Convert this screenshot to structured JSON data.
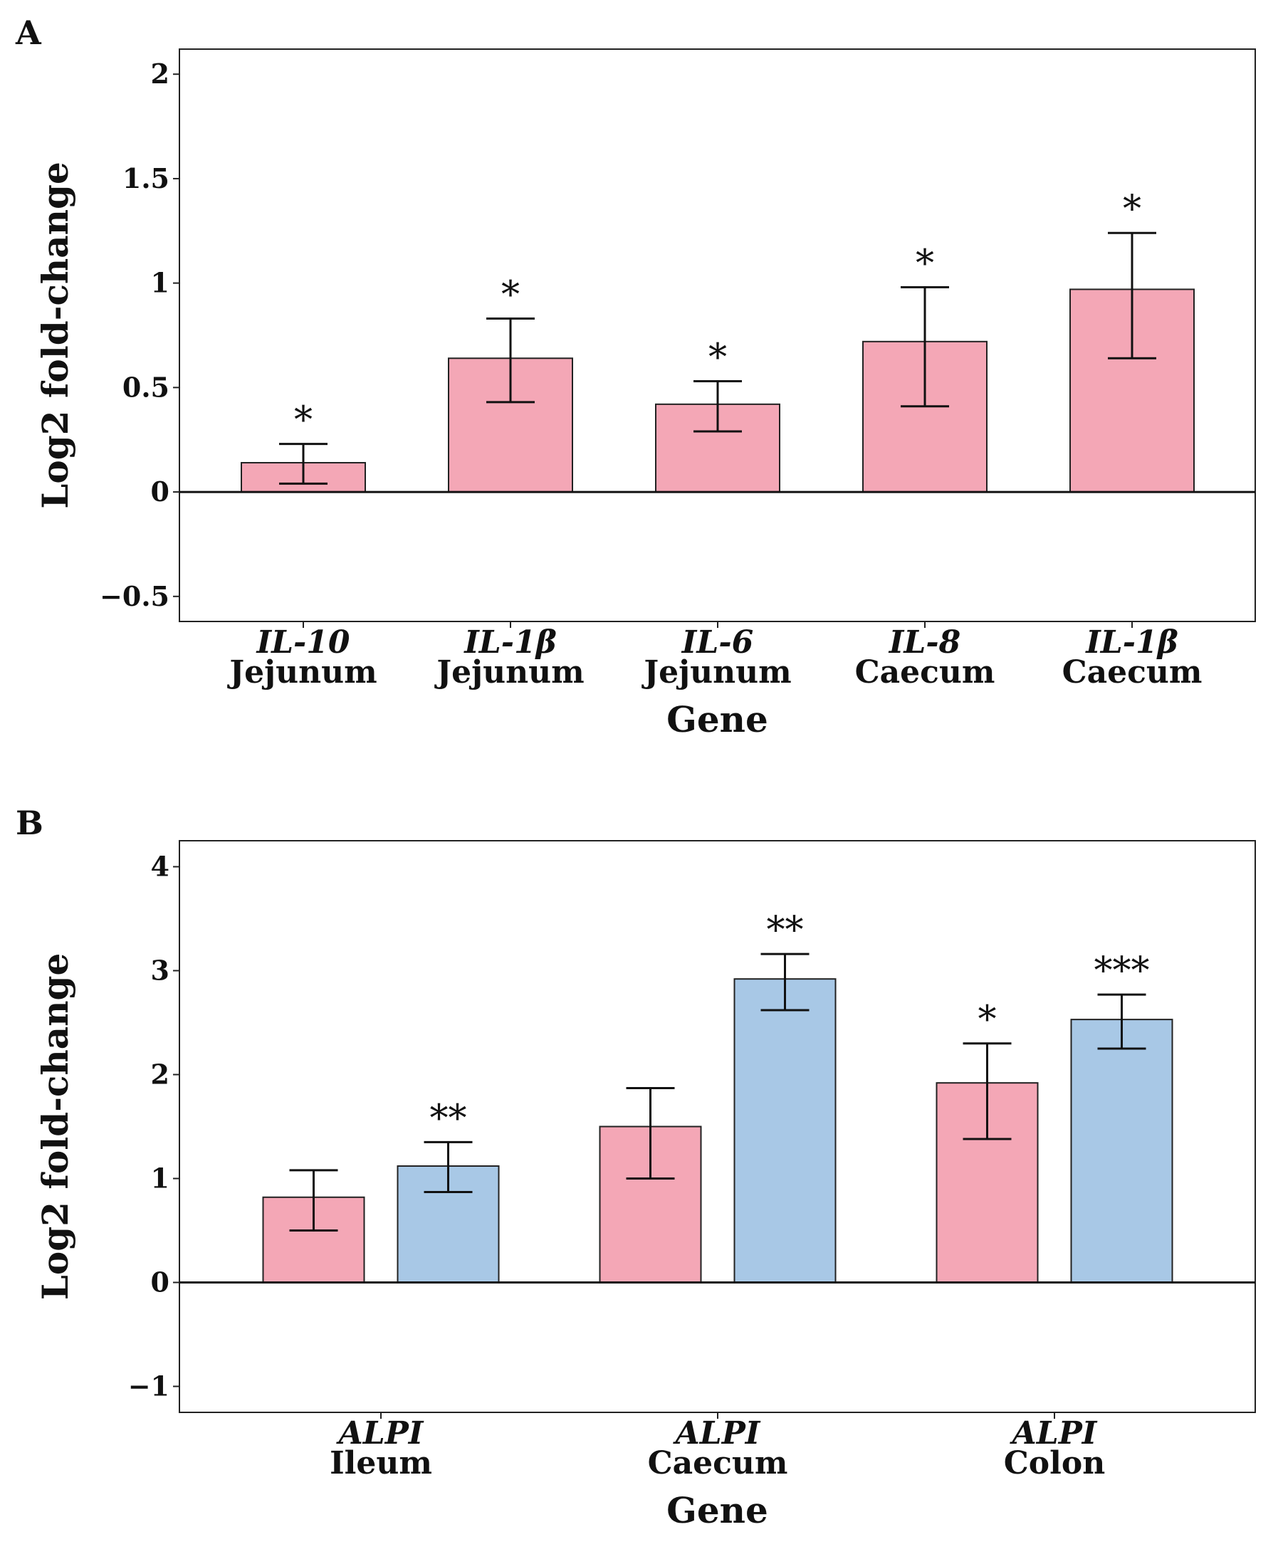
{
  "chart_data": [
    {
      "panel": "A",
      "type": "bar",
      "xlabel": "Gene",
      "ylabel": "Log2 fold-change",
      "ylim": [
        -0.62,
        2.12
      ],
      "yticks": [
        -0.5,
        0,
        0.5,
        1,
        1.5,
        2
      ],
      "ytick_labels": [
        "−0.5",
        "0",
        "0.5",
        "1",
        "1.5",
        "2"
      ],
      "categories": [
        {
          "gene": "IL-10",
          "tissue": "Jejunum"
        },
        {
          "gene": "IL-1β",
          "tissue": "Jejunum"
        },
        {
          "gene": "IL-6",
          "tissue": "Jejunum"
        },
        {
          "gene": "IL-8",
          "tissue": "Caecum"
        },
        {
          "gene": "IL-1β",
          "tissue": "Caecum"
        }
      ],
      "series": [
        {
          "color": "#f4a7b6",
          "values": [
            0.14,
            0.64,
            0.42,
            0.72,
            0.97
          ],
          "err_low": [
            0.04,
            0.43,
            0.29,
            0.41,
            0.64
          ],
          "err_high": [
            0.23,
            0.83,
            0.53,
            0.98,
            1.24
          ],
          "significance": [
            "*",
            "*",
            "*",
            "*",
            "*"
          ]
        }
      ],
      "grid": false,
      "legend": "none"
    },
    {
      "panel": "B",
      "type": "bar",
      "xlabel": "Gene",
      "ylabel": "Log2 fold-change",
      "ylim": [
        -1.25,
        4.25
      ],
      "yticks": [
        -1,
        0,
        1,
        2,
        3,
        4
      ],
      "ytick_labels": [
        "−1",
        "0",
        "1",
        "2",
        "3",
        "4"
      ],
      "categories": [
        {
          "gene": "ALPI",
          "tissue": "Ileum"
        },
        {
          "gene": "ALPI",
          "tissue": "Caecum"
        },
        {
          "gene": "ALPI",
          "tissue": "Colon"
        }
      ],
      "series": [
        {
          "color": "#f4a7b6",
          "values": [
            0.82,
            1.5,
            1.92
          ],
          "err_low": [
            0.5,
            1.0,
            1.38
          ],
          "err_high": [
            1.08,
            1.87,
            2.3
          ],
          "significance": [
            "",
            "",
            "*"
          ]
        },
        {
          "color": "#a8c8e6",
          "values": [
            1.12,
            2.92,
            2.53
          ],
          "err_low": [
            0.87,
            2.62,
            2.25
          ],
          "err_high": [
            1.35,
            3.16,
            2.77
          ],
          "significance": [
            "**",
            "**",
            "***"
          ]
        }
      ],
      "grid": false,
      "legend": "none"
    }
  ]
}
